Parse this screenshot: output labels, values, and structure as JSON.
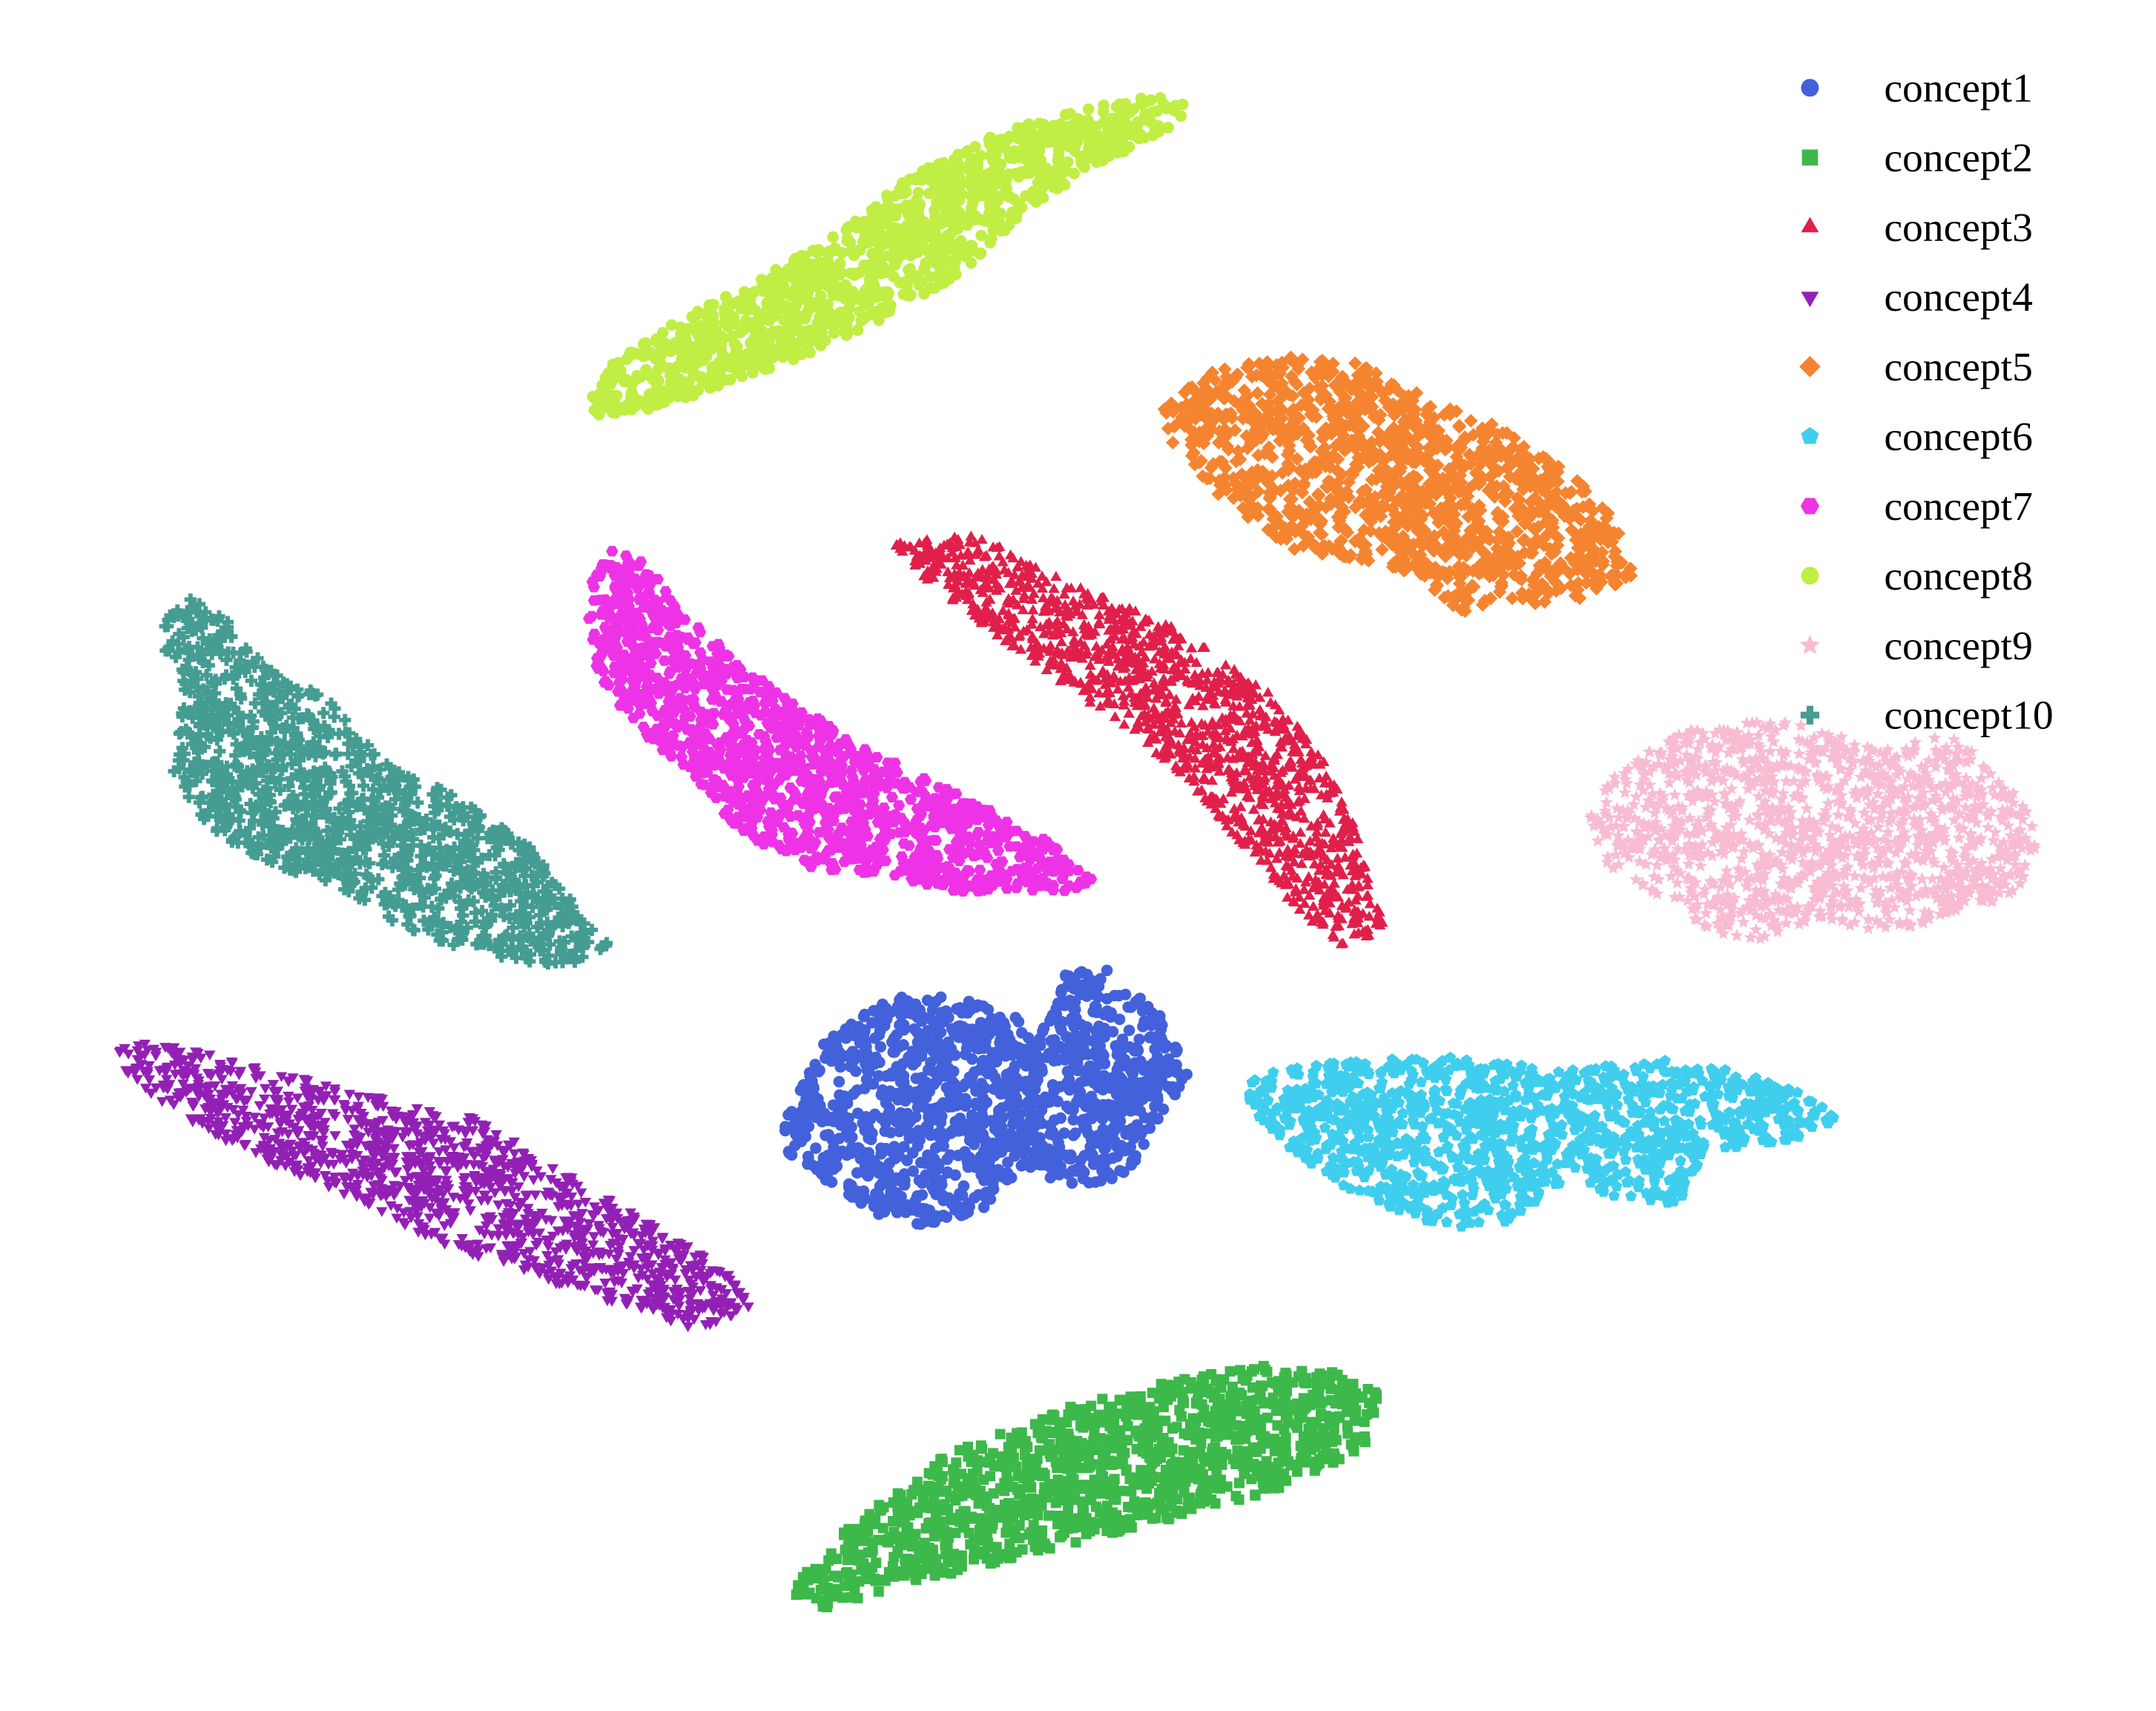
{
  "chart_data": {
    "type": "scatter",
    "title": "",
    "xlabel": "",
    "ylabel": "",
    "axes_visible": false,
    "grid": false,
    "legend_position": "top-right",
    "xlim": [
      0,
      1570
    ],
    "ylim": [
      0,
      1247
    ],
    "series": [
      {
        "name": "concept1",
        "marker": "circle",
        "color": "#4361DA",
        "points_per_cluster": 1300,
        "regions": [
          {
            "polygon": [
              [
                570,
                820
              ],
              [
                600,
                760
              ],
              [
                650,
                725
              ],
              [
                700,
                725
              ],
              [
                740,
                740
              ],
              [
                755,
                760
              ],
              [
                775,
                710
              ],
              [
                805,
                705
              ],
              [
                850,
                745
              ],
              [
                865,
                785
              ],
              [
                840,
                820
              ],
              [
                820,
                860
              ],
              [
                780,
                865
              ],
              [
                745,
                850
              ],
              [
                720,
                880
              ],
              [
                680,
                895
              ],
              [
                640,
                885
              ],
              [
                600,
                860
              ],
              [
                575,
                845
              ]
            ]
          }
        ]
      },
      {
        "name": "concept2",
        "marker": "square",
        "color": "#3DB84A",
        "points_per_cluster": 1300,
        "regions": [
          {
            "polygon": [
              [
                575,
                1160
              ],
              [
                620,
                1110
              ],
              [
                690,
                1060
              ],
              [
                780,
                1025
              ],
              [
                860,
                1005
              ],
              [
                920,
                995
              ],
              [
                975,
                1000
              ],
              [
                1005,
                1015
              ],
              [
                995,
                1055
              ],
              [
                920,
                1090
              ],
              [
                840,
                1110
              ],
              [
                760,
                1130
              ],
              [
                680,
                1150
              ],
              [
                600,
                1172
              ]
            ]
          }
        ]
      },
      {
        "name": "concept3",
        "marker": "triangle-up",
        "color": "#E0204A",
        "points_per_cluster": 1300,
        "regions": [
          {
            "polygon": [
              [
                650,
                395
              ],
              [
                710,
                390
              ],
              [
                790,
                430
              ],
              [
                860,
                460
              ],
              [
                930,
                510
              ],
              [
                965,
                555
              ],
              [
                985,
                600
              ],
              [
                1010,
                680
              ],
              [
                975,
                690
              ],
              [
                935,
                655
              ],
              [
                890,
                600
              ],
              [
                855,
                560
              ],
              [
                790,
                510
              ],
              [
                720,
                460
              ],
              [
                665,
                415
              ]
            ]
          }
        ]
      },
      {
        "name": "concept4",
        "marker": "triangle-down",
        "color": "#9320B5",
        "points_per_cluster": 1300,
        "regions": [
          {
            "polygon": [
              [
                85,
                760
              ],
              [
                130,
                760
              ],
              [
                200,
                780
              ],
              [
                280,
                800
              ],
              [
                350,
                815
              ],
              [
                420,
                860
              ],
              [
                480,
                895
              ],
              [
                530,
                925
              ],
              [
                550,
                950
              ],
              [
                510,
                970
              ],
              [
                450,
                950
              ],
              [
                390,
                930
              ],
              [
                320,
                905
              ],
              [
                250,
                870
              ],
              [
                180,
                840
              ],
              [
                120,
                805
              ],
              [
                90,
                780
              ]
            ]
          }
        ]
      },
      {
        "name": "concept5",
        "marker": "diamond",
        "color": "#F58430",
        "points_per_cluster": 1300,
        "regions": [
          {
            "polygon": [
              [
                845,
                300
              ],
              [
                880,
                270
              ],
              [
                940,
                260
              ],
              [
                990,
                265
              ],
              [
                1030,
                285
              ],
              [
                1090,
                310
              ],
              [
                1150,
                350
              ],
              [
                1180,
                380
              ],
              [
                1190,
                420
              ],
              [
                1150,
                440
              ],
              [
                1090,
                440
              ],
              [
                1060,
                450
              ],
              [
                1040,
                425
              ],
              [
                1000,
                410
              ],
              [
                940,
                400
              ],
              [
                885,
                360
              ],
              [
                850,
                320
              ]
            ]
          }
        ]
      },
      {
        "name": "concept6",
        "marker": "pentagon",
        "color": "#40CEEE",
        "points_per_cluster": 1300,
        "regions": [
          {
            "polygon": [
              [
                905,
                785
              ],
              [
                960,
                775
              ],
              [
                1050,
                770
              ],
              [
                1140,
                780
              ],
              [
                1210,
                772
              ],
              [
                1260,
                780
              ],
              [
                1310,
                795
              ],
              [
                1340,
                815
              ],
              [
                1310,
                830
              ],
              [
                1240,
                840
              ],
              [
                1225,
                880
              ],
              [
                1200,
                880
              ],
              [
                1140,
                860
              ],
              [
                1100,
                890
              ],
              [
                1060,
                895
              ],
              [
                1020,
                885
              ],
              [
                970,
                860
              ],
              [
                930,
                830
              ],
              [
                905,
                800
              ]
            ]
          }
        ]
      },
      {
        "name": "concept7",
        "marker": "hexagon",
        "color": "#EE33E6",
        "points_per_cluster": 1300,
        "regions": [
          {
            "polygon": [
              [
                430,
                425
              ],
              [
                445,
                400
              ],
              [
                470,
                410
              ],
              [
                500,
                450
              ],
              [
                560,
                500
              ],
              [
                620,
                540
              ],
              [
                690,
                575
              ],
              [
                760,
                610
              ],
              [
                800,
                640
              ],
              [
                780,
                650
              ],
              [
                700,
                650
              ],
              [
                640,
                640
              ],
              [
                580,
                630
              ],
              [
                530,
                600
              ],
              [
                500,
                560
              ],
              [
                460,
                530
              ],
              [
                435,
                490
              ],
              [
                428,
                450
              ]
            ]
          }
        ]
      },
      {
        "name": "concept8",
        "marker": "circle",
        "color": "#C0EE44",
        "points_per_cluster": 1300,
        "regions": [
          {
            "polygon": [
              [
                425,
                300
              ],
              [
                440,
                270
              ],
              [
                490,
                235
              ],
              [
                550,
                205
              ],
              [
                610,
                170
              ],
              [
                660,
                130
              ],
              [
                720,
                100
              ],
              [
                780,
                80
              ],
              [
                840,
                70
              ],
              [
                870,
                75
              ],
              [
                850,
                95
              ],
              [
                790,
                125
              ],
              [
                740,
                160
              ],
              [
                700,
                200
              ],
              [
                630,
                240
              ],
              [
                560,
                270
              ],
              [
                490,
                295
              ],
              [
                440,
                305
              ]
            ]
          }
        ]
      },
      {
        "name": "concept9",
        "marker": "star",
        "color": "#F8BCD2",
        "points_per_cluster": 1300,
        "regions": [
          {
            "polygon": [
              [
                1155,
                595
              ],
              [
                1180,
                560
              ],
              [
                1230,
                530
              ],
              [
                1300,
                525
              ],
              [
                1370,
                545
              ],
              [
                1420,
                535
              ],
              [
                1465,
                570
              ],
              [
                1485,
                610
              ],
              [
                1470,
                650
              ],
              [
                1430,
                665
              ],
              [
                1380,
                680
              ],
              [
                1320,
                670
              ],
              [
                1280,
                685
              ],
              [
                1250,
                680
              ],
              [
                1210,
                655
              ],
              [
                1170,
                630
              ]
            ]
          }
        ]
      },
      {
        "name": "concept10",
        "marker": "plus",
        "color": "#459C92",
        "points_per_cluster": 1300,
        "regions": [
          {
            "polygon": [
              [
                120,
                450
              ],
              [
                140,
                435
              ],
              [
                170,
                455
              ],
              [
                200,
                490
              ],
              [
                240,
                510
              ],
              [
                280,
                555
              ],
              [
                330,
                580
              ],
              [
                380,
                610
              ],
              [
                420,
                660
              ],
              [
                445,
                690
              ],
              [
                410,
                705
              ],
              [
                350,
                695
              ],
              [
                300,
                680
              ],
              [
                250,
                650
              ],
              [
                200,
                630
              ],
              [
                155,
                610
              ],
              [
                125,
                560
              ],
              [
                135,
                500
              ],
              [
                120,
                475
              ]
            ]
          }
        ]
      }
    ]
  }
}
